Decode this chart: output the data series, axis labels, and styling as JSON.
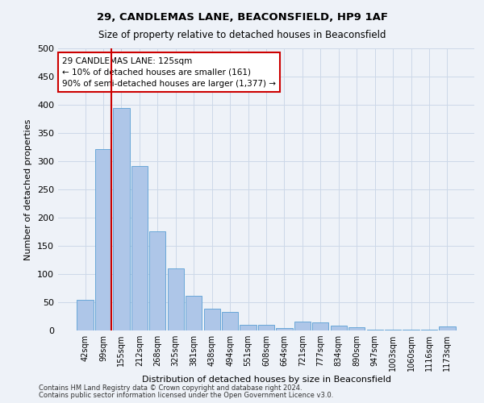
{
  "title1": "29, CANDLEMAS LANE, BEACONSFIELD, HP9 1AF",
  "title2": "Size of property relative to detached houses in Beaconsfield",
  "xlabel": "Distribution of detached houses by size in Beaconsfield",
  "ylabel": "Number of detached properties",
  "footnote1": "Contains HM Land Registry data © Crown copyright and database right 2024.",
  "footnote2": "Contains public sector information licensed under the Open Government Licence v3.0.",
  "categories": [
    "42sqm",
    "99sqm",
    "155sqm",
    "212sqm",
    "268sqm",
    "325sqm",
    "381sqm",
    "438sqm",
    "494sqm",
    "551sqm",
    "608sqm",
    "664sqm",
    "721sqm",
    "777sqm",
    "834sqm",
    "890sqm",
    "947sqm",
    "1003sqm",
    "1060sqm",
    "1116sqm",
    "1173sqm"
  ],
  "values": [
    54,
    322,
    395,
    292,
    176,
    110,
    62,
    38,
    33,
    10,
    10,
    5,
    16,
    14,
    9,
    6,
    2,
    2,
    1,
    2,
    7
  ],
  "bar_color": "#aec6e8",
  "bar_edge_color": "#5a9fd4",
  "grid_color": "#ccd8e8",
  "background_color": "#eef2f8",
  "vline_color": "#cc0000",
  "annotation_text": "29 CANDLEMAS LANE: 125sqm\n← 10% of detached houses are smaller (161)\n90% of semi-detached houses are larger (1,377) →",
  "annotation_box_color": "#ffffff",
  "annotation_box_edge": "#cc0000",
  "ylim": [
    0,
    500
  ],
  "yticks": [
    0,
    50,
    100,
    150,
    200,
    250,
    300,
    350,
    400,
    450,
    500
  ]
}
